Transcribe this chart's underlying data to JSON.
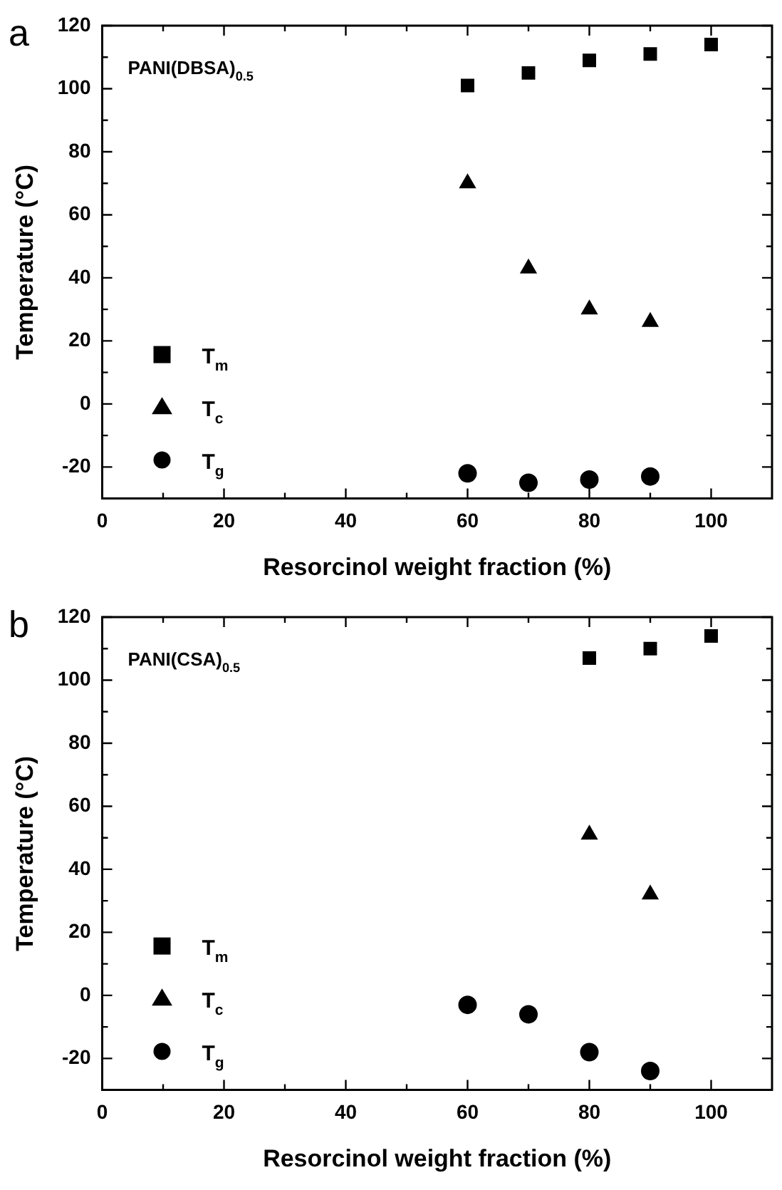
{
  "chart_data": [
    {
      "type": "scatter",
      "title": "a",
      "xlabel": "Resorcinol weight fraction (%)",
      "ylabel": "Temperature (°C)",
      "annotations": [
        "PANI(DBSA)$_{0.5}$"
      ],
      "xlim": [
        0,
        110
      ],
      "xticks": [
        0,
        {
          "value": 10,
          "label": null
        },
        20,
        {
          "value": 30,
          "label": null
        },
        40,
        {
          "value": 50,
          "label": null
        },
        60,
        {
          "value": 70,
          "label": null
        },
        80,
        {
          "value": 90,
          "label": null
        },
        100
      ],
      "ylim": [
        -30,
        120
      ],
      "yticks": [
        -20,
        {
          "value": -10,
          "label": null
        },
        0,
        {
          "value": 10,
          "label": null
        },
        20,
        {
          "value": 30,
          "label": null
        },
        40,
        {
          "value": 50,
          "label": null
        },
        60,
        {
          "value": 70,
          "label": null
        },
        80,
        {
          "value": 90,
          "label": null
        },
        100,
        {
          "value": 110,
          "label": null
        },
        120
      ],
      "grid": false,
      "legend": "bottom left",
      "series": [
        {
          "name": "T$_{m}$",
          "color": "#000000",
          "marker": "square",
          "x": [
            60,
            70,
            80,
            90,
            100
          ],
          "values": [
            101,
            105,
            109,
            111,
            114
          ]
        },
        {
          "name": "T$_{c}$",
          "color": "#000000",
          "marker": "triangle",
          "x": [
            60,
            70,
            80,
            90
          ],
          "values": [
            70,
            43,
            30,
            26
          ]
        },
        {
          "name": "T$_{g}$",
          "color": "#000000",
          "marker": "circle",
          "x": [
            60,
            70,
            80,
            90
          ],
          "values": [
            -22,
            -25,
            -24,
            -23
          ]
        }
      ]
    },
    {
      "type": "scatter",
      "title": "b",
      "xlabel": "Resorcinol weight fraction (%)",
      "ylabel": "Temperature (°C)",
      "annotations": [
        "PANI(CSA)$_{0.5}$"
      ],
      "xlim": [
        0,
        110
      ],
      "xticks": [
        0,
        {
          "value": 10,
          "label": null
        },
        20,
        {
          "value": 30,
          "label": null
        },
        40,
        {
          "value": 50,
          "label": null
        },
        60,
        {
          "value": 70,
          "label": null
        },
        80,
        {
          "value": 90,
          "label": null
        },
        100
      ],
      "ylim": [
        -30,
        120
      ],
      "yticks": [
        -20,
        {
          "value": -10,
          "label": null
        },
        0,
        {
          "value": 10,
          "label": null
        },
        20,
        {
          "value": 30,
          "label": null
        },
        40,
        {
          "value": 50,
          "label": null
        },
        60,
        {
          "value": 70,
          "label": null
        },
        80,
        {
          "value": 90,
          "label": null
        },
        100,
        {
          "value": 110,
          "label": null
        },
        120
      ],
      "grid": false,
      "legend": "bottom left",
      "series": [
        {
          "name": "T$_{m}$",
          "color": "#000000",
          "marker": "square",
          "x": [
            80,
            90,
            100
          ],
          "values": [
            107,
            110,
            114
          ]
        },
        {
          "name": "T$_{c}$",
          "color": "#000000",
          "marker": "triangle",
          "x": [
            80,
            90
          ],
          "values": [
            51,
            32
          ]
        },
        {
          "name": "T$_{g}$",
          "color": "#000000",
          "marker": "circle",
          "x": [
            60,
            70,
            80,
            90
          ],
          "values": [
            -3,
            -6,
            -18,
            -24
          ]
        }
      ]
    }
  ]
}
